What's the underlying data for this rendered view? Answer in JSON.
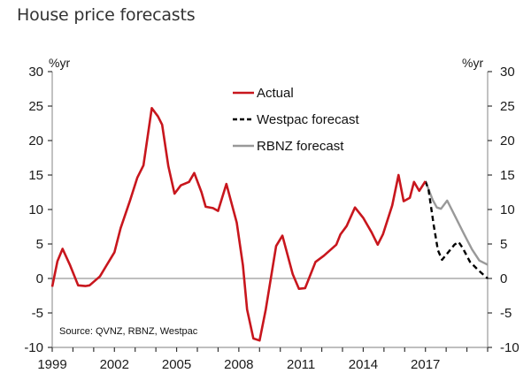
{
  "page": {
    "title": "House price forecasts"
  },
  "chart_data": {
    "type": "line",
    "title": "House price forecasts",
    "xlabel": "",
    "ylabel_left": "%yr",
    "ylabel_right": "%yr",
    "ylim": [
      -10,
      30
    ],
    "xlim": [
      1999,
      2020
    ],
    "y_ticks": [
      30,
      25,
      20,
      15,
      10,
      5,
      0,
      -5,
      -10
    ],
    "x_tick_labels": [
      "1999",
      "2002",
      "2005",
      "2008",
      "2011",
      "2014",
      "2017"
    ],
    "x_tick_label_years": [
      1999,
      2002,
      2005,
      2008,
      2011,
      2014,
      2017
    ],
    "x_minor_tick_years": [
      1999,
      2000,
      2001,
      2002,
      2003,
      2004,
      2005,
      2006,
      2007,
      2008,
      2009,
      2010,
      2011,
      2012,
      2013,
      2014,
      2015,
      2016,
      2017,
      2018,
      2019,
      2020
    ],
    "zero_line": true,
    "grid": false,
    "legend_position": "top-center",
    "source": "Source: QVNZ, RBNZ, Westpac",
    "series": [
      {
        "name": "Actual",
        "color": "#c8161d",
        "style": "solid",
        "x": [
          1999.0,
          1999.25,
          1999.5,
          1999.85,
          2000.25,
          2000.6,
          2000.8,
          2001.3,
          2001.6,
          2002.0,
          2002.3,
          2002.75,
          2003.1,
          2003.4,
          2003.8,
          2004.1,
          2004.3,
          2004.6,
          2004.9,
          2005.2,
          2005.6,
          2005.85,
          2006.2,
          2006.4,
          2006.75,
          2007.0,
          2007.4,
          2007.9,
          2008.2,
          2008.4,
          2008.7,
          2009.0,
          2009.3,
          2009.8,
          2010.1,
          2010.6,
          2010.9,
          2011.2,
          2011.7,
          2012.1,
          2012.7,
          2012.9,
          2013.2,
          2013.6,
          2014.0,
          2014.4,
          2014.7,
          2014.95,
          2015.4,
          2015.7,
          2015.95,
          2016.25,
          2016.45,
          2016.7,
          2017.0
        ],
        "values": [
          -1.2,
          2.5,
          4.3,
          2.0,
          -1.0,
          -1.1,
          -1.0,
          0.3,
          1.8,
          3.8,
          7.3,
          11.3,
          14.6,
          16.4,
          24.7,
          23.5,
          22.3,
          16.3,
          12.3,
          13.5,
          14.0,
          15.3,
          12.5,
          10.4,
          10.2,
          9.8,
          13.7,
          8.1,
          1.9,
          -4.5,
          -8.7,
          -9.0,
          -4.5,
          4.7,
          6.2,
          0.6,
          -1.5,
          -1.4,
          2.4,
          3.3,
          4.9,
          6.4,
          7.6,
          10.3,
          8.8,
          6.7,
          4.9,
          6.4,
          10.6,
          15.0,
          11.2,
          11.7,
          14.0,
          12.7,
          14.1
        ]
      },
      {
        "name": "Westpac forecast",
        "color": "#000000",
        "style": "dashed",
        "x": [
          2017.0,
          2017.15,
          2017.4,
          2017.6,
          2017.8,
          2018.1,
          2018.4,
          2018.6,
          2018.8,
          2019.15,
          2019.55,
          2020.0
        ],
        "values": [
          14.1,
          12.9,
          7.7,
          4.1,
          2.7,
          3.8,
          4.9,
          5.3,
          4.4,
          2.4,
          1.2,
          0.0
        ]
      },
      {
        "name": "RBNZ forecast",
        "color": "#999999",
        "style": "solid",
        "x": [
          2017.0,
          2017.35,
          2017.55,
          2017.75,
          2018.05,
          2018.4,
          2018.85,
          2019.25,
          2019.6,
          2020.0
        ],
        "values": [
          14.1,
          11.4,
          10.3,
          10.1,
          11.3,
          9.2,
          6.5,
          4.2,
          2.6,
          2.0
        ]
      }
    ]
  }
}
